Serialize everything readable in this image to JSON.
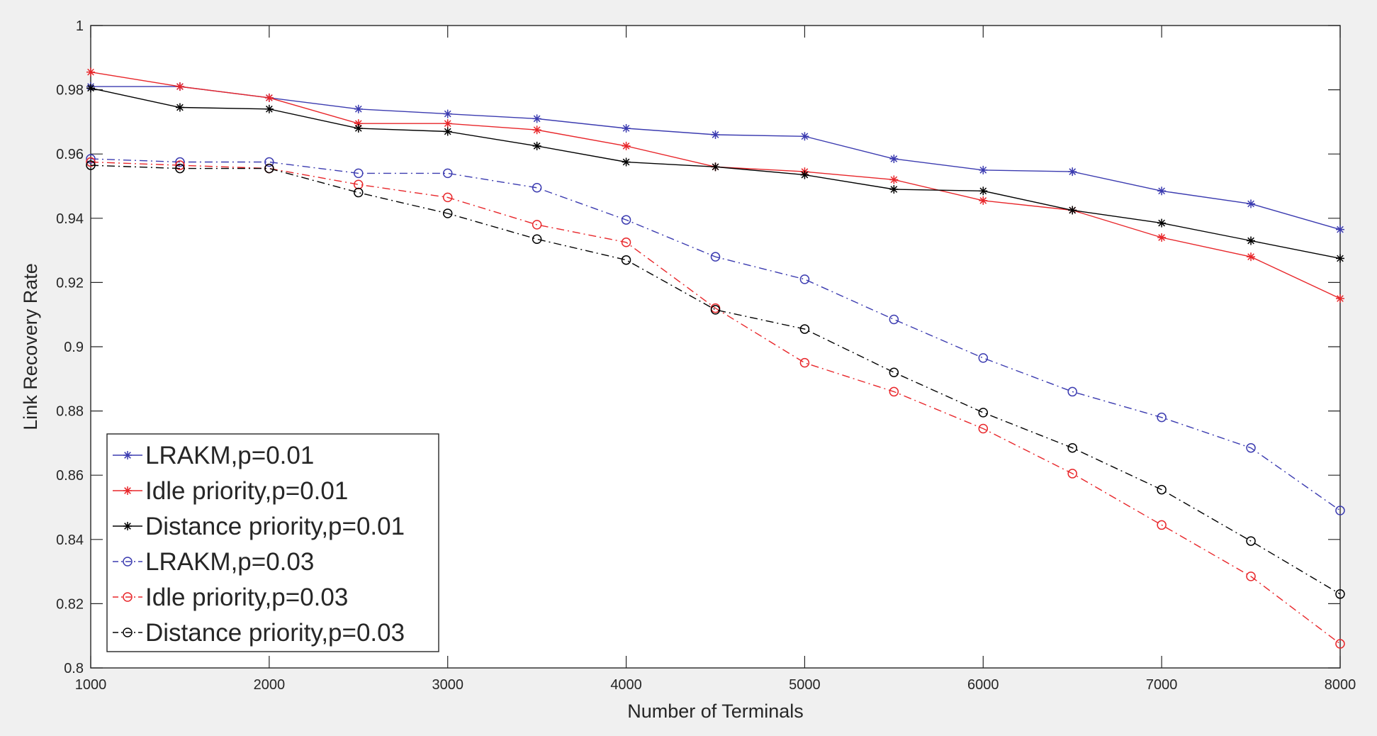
{
  "chart_data": {
    "type": "line",
    "title": "",
    "xlabel": "Number of Terminals",
    "ylabel": "Link Recovery Rate",
    "xlim": [
      1000,
      8000
    ],
    "ylim": [
      0.8,
      1.0
    ],
    "xticks": [
      1000,
      2000,
      3000,
      4000,
      5000,
      6000,
      7000,
      8000
    ],
    "yticks": [
      0.8,
      0.82,
      0.84,
      0.86,
      0.88,
      0.9,
      0.92,
      0.94,
      0.96,
      0.98,
      1
    ],
    "grid": false,
    "legend_location": "bottom-left",
    "x": [
      1000,
      1500,
      2000,
      2500,
      3000,
      3500,
      4000,
      4500,
      5000,
      5500,
      6000,
      6500,
      7000,
      7500,
      8000
    ],
    "series": [
      {
        "name": "LRAKM,p=0.01",
        "color": "#3b3bb0",
        "line_style": "solid",
        "marker": "asterisk",
        "values": [
          0.981,
          0.981,
          0.9775,
          0.974,
          0.9725,
          0.971,
          0.968,
          0.966,
          0.9655,
          0.9585,
          0.955,
          0.9545,
          0.9485,
          0.9445,
          0.9365
        ]
      },
      {
        "name": "Idle priority,p=0.01",
        "color": "#e8262a",
        "line_style": "solid",
        "marker": "asterisk",
        "values": [
          0.9855,
          0.981,
          0.9775,
          0.9695,
          0.9695,
          0.9675,
          0.9625,
          0.956,
          0.9545,
          0.952,
          0.9455,
          0.9425,
          0.934,
          0.928,
          0.915
        ]
      },
      {
        "name": "Distance priority,p=0.01",
        "color": "#000000",
        "line_style": "solid",
        "marker": "asterisk",
        "values": [
          0.9805,
          0.9745,
          0.974,
          0.968,
          0.967,
          0.9625,
          0.9575,
          0.956,
          0.9535,
          0.949,
          0.9485,
          0.9425,
          0.9385,
          0.933,
          0.9275
        ]
      },
      {
        "name": "LRAKM,p=0.03",
        "color": "#3b3bb0",
        "line_style": "dashdot",
        "marker": "circle",
        "values": [
          0.9585,
          0.9575,
          0.9575,
          0.954,
          0.954,
          0.9495,
          0.9395,
          0.928,
          0.921,
          0.9085,
          0.8965,
          0.886,
          0.878,
          0.8685,
          0.849
        ]
      },
      {
        "name": "Idle priority,p=0.03",
        "color": "#e8262a",
        "line_style": "dashdot",
        "marker": "circle",
        "values": [
          0.9575,
          0.9565,
          0.9555,
          0.9505,
          0.9465,
          0.938,
          0.9325,
          0.912,
          0.895,
          0.886,
          0.8745,
          0.8605,
          0.8445,
          0.8285,
          0.8075
        ]
      },
      {
        "name": "Distance priority,p=0.03",
        "color": "#000000",
        "line_style": "dashdot",
        "marker": "circle",
        "values": [
          0.9565,
          0.9555,
          0.9555,
          0.948,
          0.9415,
          0.9335,
          0.927,
          0.9115,
          0.9055,
          0.892,
          0.8795,
          0.8685,
          0.8555,
          0.8395,
          0.823
        ]
      }
    ]
  }
}
